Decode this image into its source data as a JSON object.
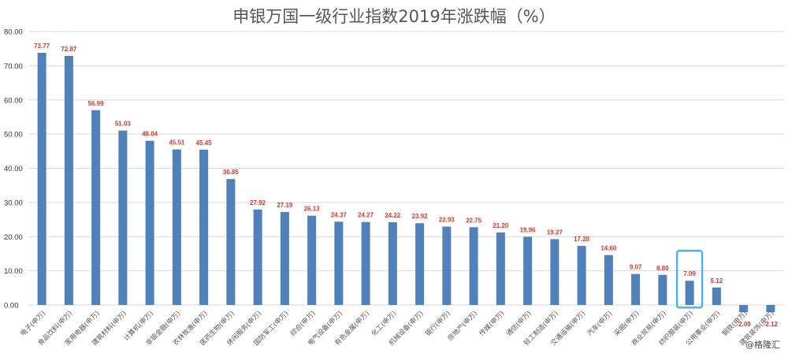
{
  "chart_data": {
    "type": "bar",
    "title": "申银万国一级行业指数2019年涨跌幅（%）",
    "xlabel": "",
    "ylabel": "",
    "ylim": [
      0,
      80
    ],
    "yticks": [
      "80.00",
      "70.00",
      "60.00",
      "50.00",
      "40.00",
      "30.00",
      "20.00",
      "10.00",
      "0.00"
    ],
    "grid": true,
    "legend": "none",
    "categories": [
      "电子(申万)",
      "食品饮料(申万)",
      "家用电器(申万)",
      "建筑材料(申万)",
      "计算机(申万)",
      "非银金融(申万)",
      "农林牧渔(申万)",
      "医药生物(申万)",
      "休闲服务(申万)",
      "国防军工(申万)",
      "综合(申万)",
      "电气设备(申万)",
      "有色金属(申万)",
      "化工(申万)",
      "机械设备(申万)",
      "银行(申万)",
      "房地产(申万)",
      "传媒(申万)",
      "通信(申万)",
      "轻工制造(申万)",
      "交通运输(申万)",
      "汽车(申万)",
      "采掘(申万)",
      "商业贸易(申万)",
      "纺织服装(申万)",
      "公用事业(申万)",
      "钢铁(申万)",
      "建筑装饰(申万)"
    ],
    "values": [
      73.77,
      72.87,
      56.99,
      51.03,
      48.04,
      45.51,
      45.45,
      36.85,
      27.92,
      27.19,
      26.13,
      24.37,
      24.27,
      24.22,
      23.92,
      22.93,
      22.75,
      21.2,
      19.96,
      19.27,
      17.28,
      14.6,
      9.07,
      8.8,
      7.09,
      5.12,
      -2.09,
      -2.12
    ],
    "labels": [
      "73.77",
      "72.87",
      "56.99",
      "51.03",
      "48.04",
      "45.51",
      "45.45",
      "36.85",
      "27.92",
      "27.19",
      "26.13",
      "24.37",
      "24.27",
      "24.22",
      "23.92",
      "22.93",
      "22.75",
      "21.20",
      "19.96",
      "19.27",
      "17.28",
      "14.60",
      "9.07",
      "8.80",
      "7.09",
      "5.12",
      "-2.09",
      "-2.12"
    ],
    "highlighted_category": "纺织服装(申万)",
    "colors": {
      "bar": "#4f81bd",
      "label": "#d9362b",
      "highlight": "#4fb3e6",
      "grid": "#d9d9d9",
      "title": "#555555"
    }
  },
  "watermark": "@格隆汇"
}
